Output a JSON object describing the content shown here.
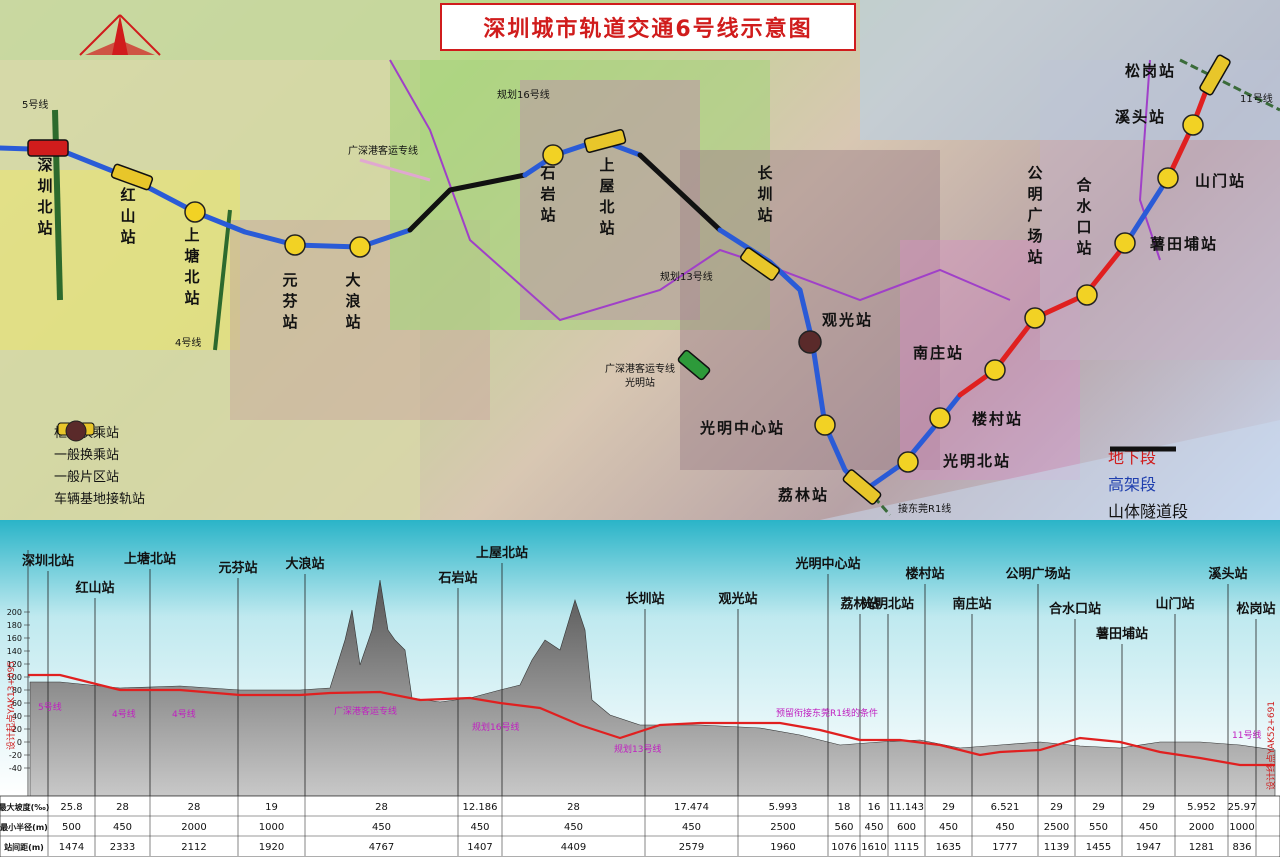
{
  "title": "深圳城市轨道交通6号线示意图",
  "legend_left": [
    {
      "label": "枢纽换乘站",
      "symbol": "hub-interchange"
    },
    {
      "label": "一般换乘站",
      "symbol": "general-interchange"
    },
    {
      "label": "一般片区站",
      "symbol": "general-station"
    },
    {
      "label": "车辆基地接轨站",
      "symbol": "depot-station"
    }
  ],
  "legend_right": [
    {
      "label": "地下段",
      "color": "#e02020"
    },
    {
      "label": "高架段",
      "color": "#2a5bd7"
    },
    {
      "label": "山体隧道段",
      "color": "#111111"
    }
  ],
  "map_labels": {
    "line5": "5号线",
    "line4": "4号线",
    "line11": "11号线",
    "line16": "规划16号线",
    "line13": "规划13号线",
    "gsg_rail": "广深港客运专线",
    "gsg_station": "广深港客运专线\n光明站",
    "r1": "接东莞R1线"
  },
  "stations": [
    {
      "name": "深圳北站",
      "type": "hub",
      "color": "#d01c1c"
    },
    {
      "name": "红山站",
      "type": "general-interchange"
    },
    {
      "name": "上塘北站",
      "type": "general"
    },
    {
      "name": "元芬站",
      "type": "general"
    },
    {
      "name": "大浪站",
      "type": "general"
    },
    {
      "name": "石岩站",
      "type": "general"
    },
    {
      "name": "上屋北站",
      "type": "general-interchange"
    },
    {
      "name": "长圳站",
      "type": "general-interchange"
    },
    {
      "name": "观光站",
      "type": "depot"
    },
    {
      "name": "光明中心站",
      "type": "general"
    },
    {
      "name": "荔林站",
      "type": "general-interchange"
    },
    {
      "name": "光明北站",
      "type": "general"
    },
    {
      "name": "楼村站",
      "type": "general"
    },
    {
      "name": "南庄站",
      "type": "general"
    },
    {
      "name": "公明广场站",
      "type": "general"
    },
    {
      "name": "合水口站",
      "type": "general"
    },
    {
      "name": "薯田埔站",
      "type": "general"
    },
    {
      "name": "山门站",
      "type": "general"
    },
    {
      "name": "溪头站",
      "type": "general"
    },
    {
      "name": "松岗站",
      "type": "general-interchange"
    }
  ],
  "profile": {
    "y_ticks": [
      "200",
      "180",
      "160",
      "140",
      "120",
      "100",
      "80",
      "60",
      "40",
      "20",
      "0",
      "-20",
      "-40"
    ],
    "annotations": [
      {
        "text": "5号线"
      },
      {
        "text": "4号线"
      },
      {
        "text": "4号线"
      },
      {
        "text": "广深港客运专线"
      },
      {
        "text": "规划16号线"
      },
      {
        "text": "规划13号线"
      },
      {
        "text": "预留衔接东莞R1线的条件"
      },
      {
        "text": "11号线"
      }
    ],
    "start_label": "设计起点YAK13+095",
    "end_label": "设计终点YAK52+691"
  },
  "table": {
    "headers": [
      "最大坡度(‰)",
      "最小半径(m)",
      "站间距(m)"
    ],
    "max_grade": [
      "25.8",
      "28",
      "28",
      "19",
      "28",
      "12.186",
      "28",
      "17.474",
      "5.993",
      "18",
      "16",
      "11.143",
      "29",
      "6.521",
      "29",
      "29",
      "29",
      "5.952",
      "25.97"
    ],
    "min_radius": [
      "500",
      "450",
      "2000",
      "1000",
      "450",
      "450",
      "450",
      "450",
      "2500",
      "560",
      "450",
      "600",
      "450",
      "450",
      "2500",
      "550",
      "450",
      "2000",
      "1000"
    ],
    "spacing": [
      "1474",
      "2333",
      "2112",
      "1920",
      "4767",
      "1407",
      "4409",
      "2579",
      "1960",
      "1076",
      "1610",
      "1115",
      "1635",
      "1777",
      "1139",
      "1455",
      "1947",
      "1281",
      "836"
    ]
  }
}
